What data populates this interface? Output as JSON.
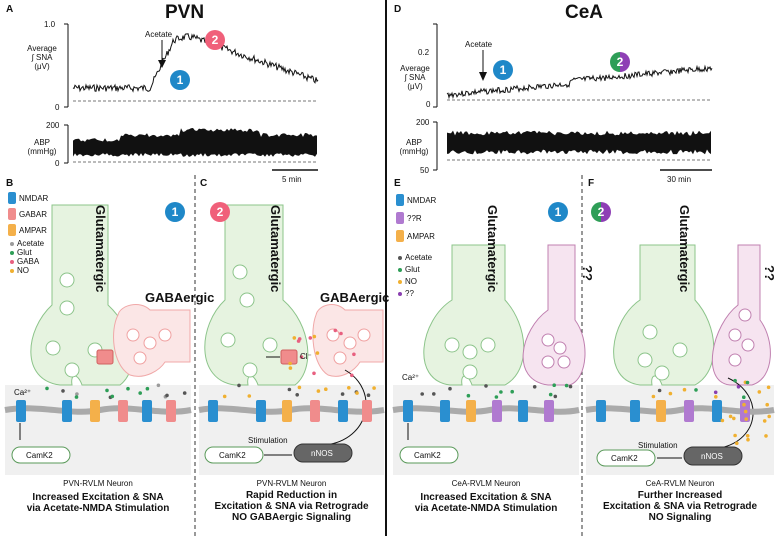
{
  "titles": {
    "left": "PVN",
    "right": "CeA"
  },
  "panels": {
    "A": "A",
    "B": "B",
    "C": "C",
    "D": "D",
    "E": "E",
    "F": "F"
  },
  "traces": {
    "left": {
      "sna_label": "Average\n∫ SNA\n(μV)",
      "sna_ticks": [
        "1.0",
        "0"
      ],
      "abp_label": "ABP\n(mmHg)",
      "abp_ticks": [
        "200",
        "0"
      ],
      "acetate": "Acetate",
      "scale": "5 min"
    },
    "right": {
      "sna_label": "Average\n∫ SNA\n(μV)",
      "sna_ticks": [
        "0.2",
        "0"
      ],
      "abp_label": "ABP\n(mmHg)",
      "abp_ticks": [
        "200",
        "50"
      ],
      "acetate": "Acetate",
      "scale": "30 min"
    }
  },
  "badges": {
    "one": "1",
    "two": "2"
  },
  "legend_B": [
    {
      "name": "NMDAR",
      "color": "#2a8fd0"
    },
    {
      "name": "GABAR",
      "color": "#f08c8c"
    },
    {
      "name": "AMPAR",
      "color": "#f4b04a"
    }
  ],
  "legend_B_dots": [
    {
      "name": "Acetate",
      "color": "#9b9b9b"
    },
    {
      "name": "Glut",
      "color": "#2e9e57"
    },
    {
      "name": "GABA",
      "color": "#e86080"
    },
    {
      "name": "NO",
      "color": "#f0b030"
    }
  ],
  "legend_E": [
    {
      "name": "NMDAR",
      "color": "#2a8fd0"
    },
    {
      "name": "??R",
      "color": "#b07ad0"
    },
    {
      "name": "AMPAR",
      "color": "#f4b04a"
    }
  ],
  "legend_E_dots": [
    {
      "name": "Acetate",
      "color": "#555555"
    },
    {
      "name": "Glut",
      "color": "#2e9e57"
    },
    {
      "name": "NO",
      "color": "#f0b030"
    },
    {
      "name": "??",
      "color": "#8a3fb0"
    }
  ],
  "cells": {
    "glutamatergic": "Glutamatergic",
    "gabaergic": "GABAergic",
    "unknown": "??"
  },
  "labels": {
    "ca": "Ca²⁺",
    "cl": "Cl⁻",
    "camk2": "CamK2",
    "nnos": "nNOS",
    "stimulation": "Stimulation"
  },
  "captions": {
    "B_neuron": "PVN-RVLM Neuron",
    "B_text": "Increased Excitation & SNA\nvia Acetate-NMDA Stimulation",
    "C_neuron": "PVN-RVLM Neuron",
    "C_text": "Rapid Reduction in\nExcitation & SNA via Retrograde\nNO GABAergic Signaling",
    "E_neuron": "CeA-RVLM Neuron",
    "E_text": "Increased Excitation & SNA\nvia Acetate-NMDA Stimulation",
    "F_neuron": "CeA-RVLM Neuron",
    "F_text": "Further Increased\nExcitation & SNA via Retrograde\nNO Signaling"
  },
  "colors": {
    "blue_badge": "#1f88c8",
    "pink_badge": "#f0607a",
    "purple_badge": "#8e3fb5",
    "green_badge": "#2e9e57",
    "neuron_green": "#e4f2df",
    "neuron_pink": "#fbe4e4",
    "neuron_purple": "#f6e4f0"
  }
}
